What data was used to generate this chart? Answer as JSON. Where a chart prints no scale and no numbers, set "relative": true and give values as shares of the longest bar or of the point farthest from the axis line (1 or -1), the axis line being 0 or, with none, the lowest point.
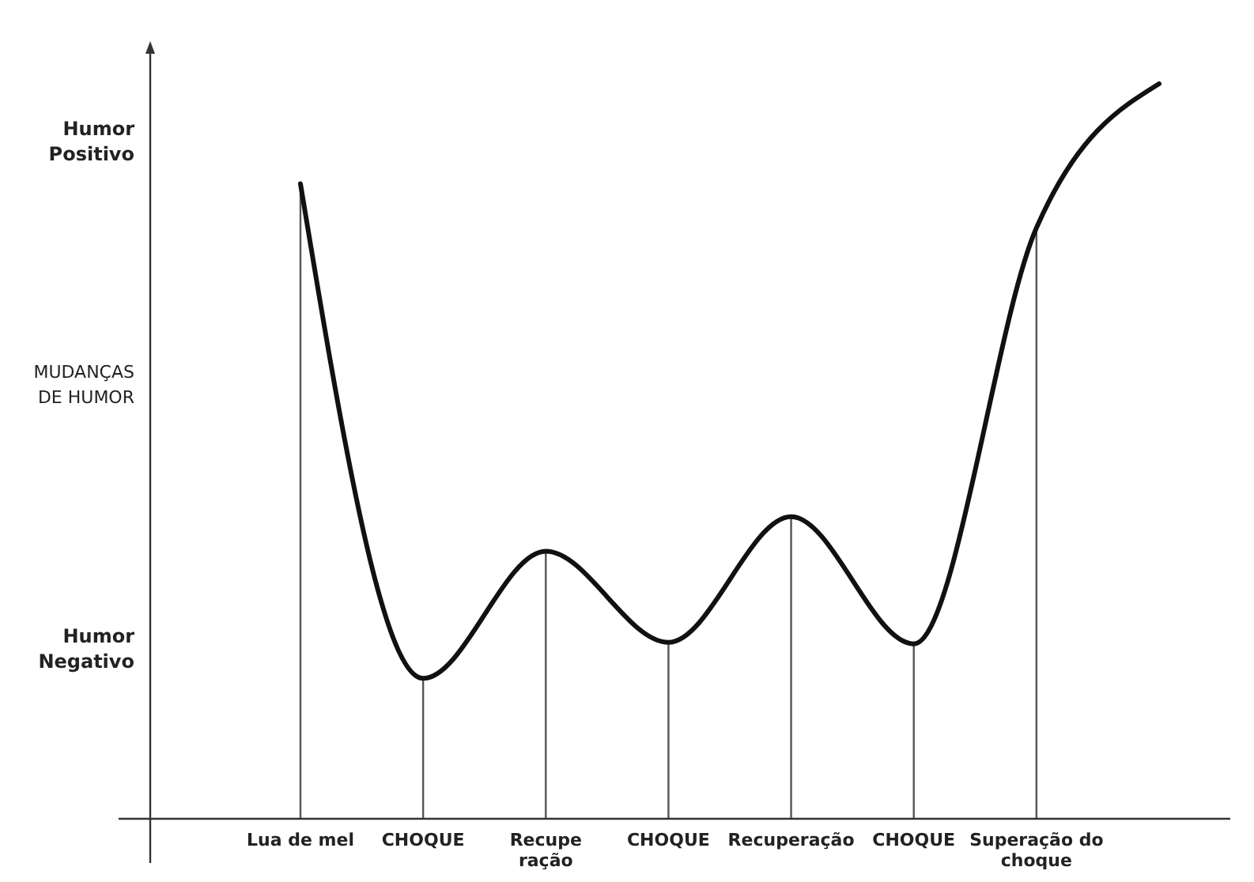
{
  "chart_data": {
    "type": "line",
    "relative": true,
    "categories": [
      "Lua de mel",
      "CHOQUE",
      "Recupe\nração",
      "CHOQUE",
      "Recuperação",
      "CHOQUE",
      "Superação do\nchoque",
      null
    ],
    "series": [
      {
        "type": "bar",
        "color": "#555555",
        "values": [
          0.864,
          0.191,
          0.364,
          0.24,
          0.411,
          0.238,
          0.804,
          null
        ]
      },
      {
        "color": "#111111",
        "values": [
          0.864,
          0.191,
          0.364,
          0.24,
          0.411,
          0.238,
          0.804,
          1
        ]
      }
    ],
    "annotations": [
      "Humor\nPositivo",
      "MUDANÇAS\nDE HUMOR",
      "Humor\nNegativo"
    ]
  }
}
